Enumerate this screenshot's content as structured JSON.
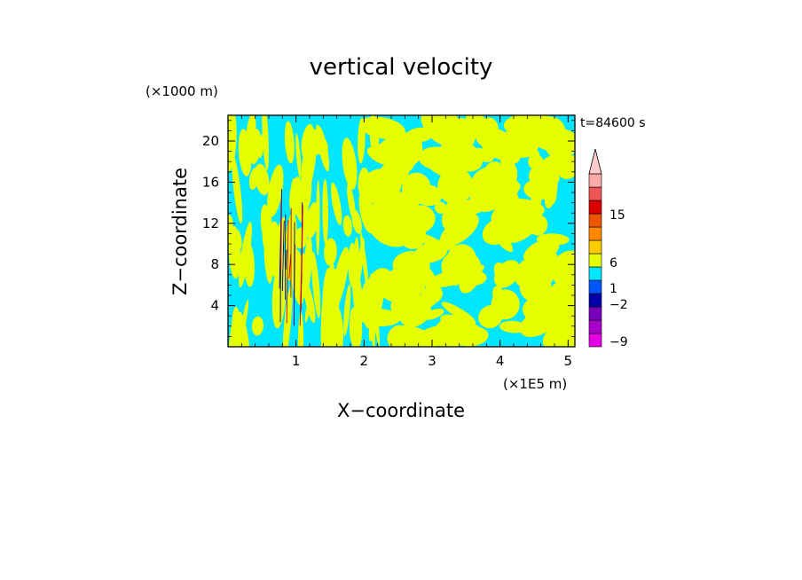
{
  "chart_data": {
    "type": "heatmap",
    "title": "vertical velocity",
    "xlabel": "X−coordinate",
    "ylabel": "Z−coordinate",
    "x_unit": "(×1E5 m)",
    "y_unit": "(×1000 m)",
    "time_label": "t=84600 s",
    "xlim": [
      0,
      5.1
    ],
    "ylim": [
      0,
      22.5
    ],
    "x_ticks": [
      "1",
      "2",
      "3",
      "4",
      "5"
    ],
    "x_tick_values": [
      1,
      2,
      3,
      4,
      5
    ],
    "y_ticks": [
      "4",
      "8",
      "12",
      "16",
      "20"
    ],
    "y_tick_values": [
      4,
      8,
      12,
      16,
      20
    ],
    "field_colors": {
      "updraft": "#e6ff00",
      "downdraft": "#00e6ff",
      "strong_up": "#cc0000",
      "strong_down": "#0000aa"
    },
    "colorbar": {
      "tick_labels": [
        "15",
        "6",
        "1",
        "−2",
        "−9"
      ],
      "levels": [
        {
          "color": "#e600e6"
        },
        {
          "color": "#aa00cc"
        },
        {
          "color": "#7700bb"
        },
        {
          "color": "#0000aa"
        },
        {
          "color": "#0055ff"
        },
        {
          "color": "#00e6ff"
        },
        {
          "color": "#e6ff00"
        },
        {
          "color": "#ffcc00"
        },
        {
          "color": "#ff8800"
        },
        {
          "color": "#ee5500"
        },
        {
          "color": "#dd0000"
        },
        {
          "color": "#ee5555"
        },
        {
          "color": "#ffaaaa"
        }
      ],
      "extend_color": "#ffcccc"
    }
  }
}
